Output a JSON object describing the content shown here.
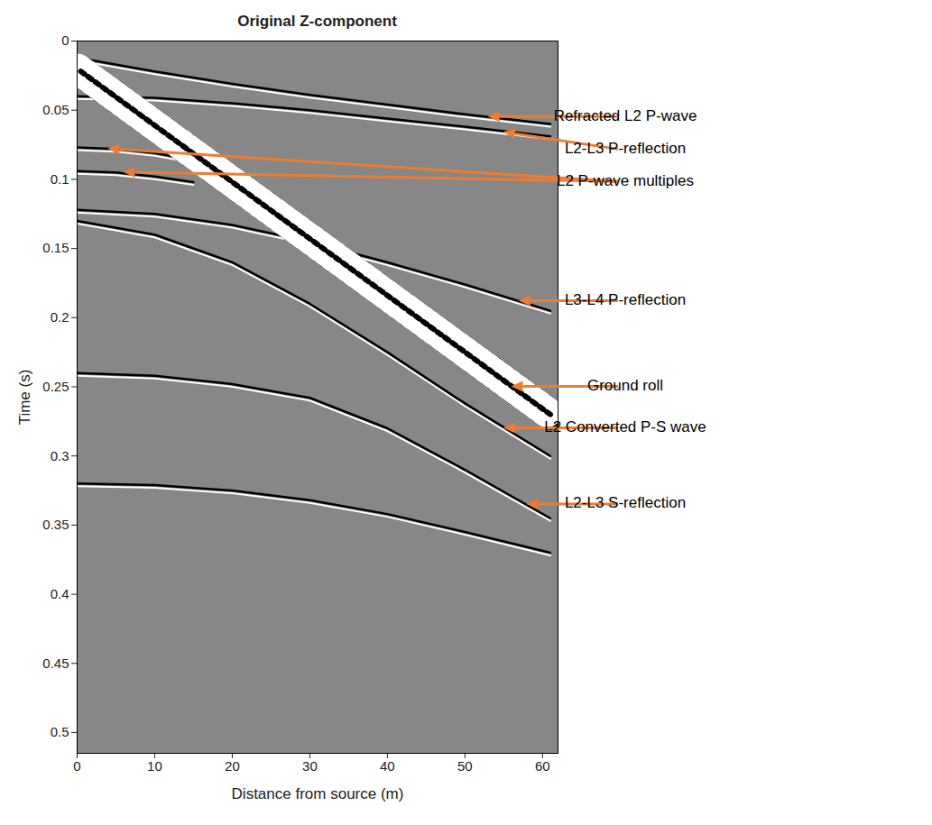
{
  "chart_data": {
    "type": "seismic",
    "title": "Original Z-component",
    "x_label": "Distance from source (m)",
    "y_label": "Time (s)",
    "xlim": [
      0,
      62
    ],
    "xticks": [
      0,
      10,
      20,
      30,
      40,
      50,
      60
    ],
    "ylim": [
      0,
      0.515
    ],
    "yticks": [
      0,
      0.05,
      0.1,
      0.15,
      0.2,
      0.25,
      0.3,
      0.35,
      0.4,
      0.45,
      0.5
    ],
    "events": [
      {
        "x": [
          0,
          10,
          20,
          30,
          40,
          50,
          61
        ],
        "values": [
          0.012,
          0.022,
          0.031,
          0.039,
          0.046,
          0.053,
          0.06
        ],
        "color": "#000000",
        "line_style": "solid"
      },
      {
        "x": [
          0,
          10,
          20,
          30,
          40,
          50,
          61
        ],
        "values": [
          0.04,
          0.041,
          0.045,
          0.05,
          0.056,
          0.062,
          0.069
        ],
        "color": "#000000",
        "line_style": "solid"
      },
      {
        "x": [
          0,
          5,
          10,
          15
        ],
        "values": [
          0.077,
          0.078,
          0.081,
          0.086
        ],
        "color": "#000000",
        "line_style": "solid"
      },
      {
        "x": [
          0,
          5,
          10,
          15
        ],
        "values": [
          0.094,
          0.095,
          0.098,
          0.102
        ],
        "color": "#000000",
        "line_style": "solid"
      },
      {
        "x": [
          0,
          10,
          20,
          30,
          40,
          50,
          61
        ],
        "values": [
          0.122,
          0.125,
          0.133,
          0.145,
          0.16,
          0.176,
          0.195
        ],
        "color": "#000000",
        "line_style": "solid"
      },
      {
        "x": [
          0,
          61
        ],
        "values": [
          0.02,
          0.27
        ],
        "color": "#000000",
        "line_style": "band"
      },
      {
        "x": [
          0,
          10,
          20,
          30,
          40,
          50,
          61
        ],
        "values": [
          0.13,
          0.14,
          0.16,
          0.19,
          0.225,
          0.262,
          0.3
        ],
        "color": "#000000",
        "line_style": "solid"
      },
      {
        "x": [
          0,
          10,
          20,
          30,
          40,
          50,
          61
        ],
        "values": [
          0.24,
          0.242,
          0.248,
          0.258,
          0.28,
          0.31,
          0.345
        ],
        "color": "#000000",
        "line_style": "solid"
      },
      {
        "x": [
          0,
          10,
          20,
          30,
          40,
          50,
          61
        ],
        "values": [
          0.32,
          0.321,
          0.325,
          0.332,
          0.342,
          0.355,
          0.37
        ],
        "color": "#000000",
        "line_style": "solid"
      }
    ],
    "annotations": [
      {
        "text": "Refracted L2 P-wave",
        "points": [
          [
            53,
            0.055
          ]
        ],
        "color": "#ed7d31"
      },
      {
        "text": "L2-L3 P-reflection",
        "points": [
          [
            55,
            0.066
          ]
        ],
        "color": "#ed7d31"
      },
      {
        "text": "L2 P-wave multiples",
        "points": [
          [
            4,
            0.078
          ],
          [
            6,
            0.095
          ]
        ],
        "color": "#ed7d31"
      },
      {
        "text": "L3-L4 P-reflection",
        "points": [
          [
            57,
            0.188
          ]
        ],
        "color": "#ed7d31"
      },
      {
        "text": "Ground roll",
        "points": [
          [
            56,
            0.25
          ]
        ],
        "color": "#ed7d31"
      },
      {
        "text": "L2 Converted P-S wave",
        "points": [
          [
            55,
            0.28
          ]
        ],
        "color": "#ed7d31"
      },
      {
        "text": "L2-L3 S-reflection",
        "points": [
          [
            58,
            0.335
          ]
        ],
        "color": "#ed7d31"
      }
    ]
  }
}
